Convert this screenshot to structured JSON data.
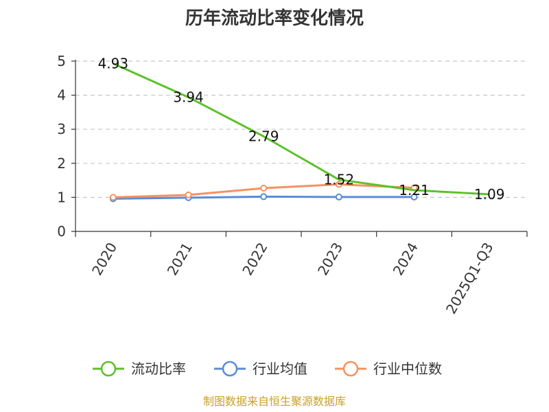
{
  "chart_data": {
    "type": "line",
    "title": "历年流动比率变化情况",
    "categories": [
      "2020",
      "2021",
      "2022",
      "2023",
      "2024",
      "2025Q1-Q3"
    ],
    "ylim": [
      0,
      5
    ],
    "yticks": [
      0,
      1,
      2,
      3,
      4,
      5
    ],
    "grid": "horizontal-dashed",
    "legend_position": "bottom",
    "series": [
      {
        "name": "流动比率",
        "color": "#5cc12a",
        "values": [
          4.93,
          3.94,
          2.79,
          1.52,
          1.21,
          1.09
        ],
        "labels": [
          "4.93",
          "3.94",
          "2.79",
          "1.52",
          "1.21",
          "1.09"
        ]
      },
      {
        "name": "行业均值",
        "color": "#5b8bd9",
        "values": [
          0.96,
          0.99,
          1.02,
          1.01,
          1.01,
          null
        ]
      },
      {
        "name": "行业中位数",
        "color": "#f5925f",
        "values": [
          1.0,
          1.07,
          1.27,
          1.38,
          1.28,
          null
        ]
      }
    ]
  },
  "footer": {
    "source": "制图数据来自恒生聚源数据库"
  }
}
